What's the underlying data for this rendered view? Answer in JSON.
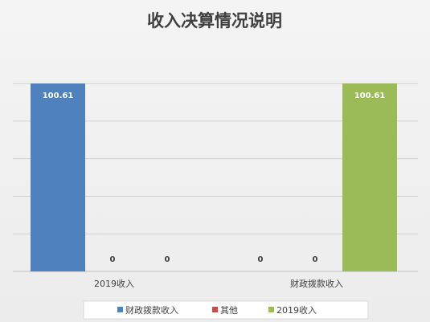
{
  "chart_data": {
    "type": "bar",
    "title": "收入决算情况说明",
    "categories": [
      "2019收入",
      "财政拨款收入"
    ],
    "series": [
      {
        "name": "财政拨款收入",
        "color": "#4f81bd",
        "values": [
          100.61,
          0
        ]
      },
      {
        "name": "其他",
        "color": "#c0504d",
        "values": [
          0,
          0
        ]
      },
      {
        "name": "2019收入",
        "color": "#9bbb59",
        "values": [
          0,
          100.61
        ]
      }
    ],
    "data_labels": [
      [
        "100.61",
        "0"
      ],
      [
        "0",
        "0"
      ],
      [
        "0",
        "100.61"
      ]
    ],
    "ylim": [
      0,
      100.61
    ],
    "grid": true,
    "legend_position": "bottom",
    "xlabel": "",
    "ylabel": ""
  }
}
